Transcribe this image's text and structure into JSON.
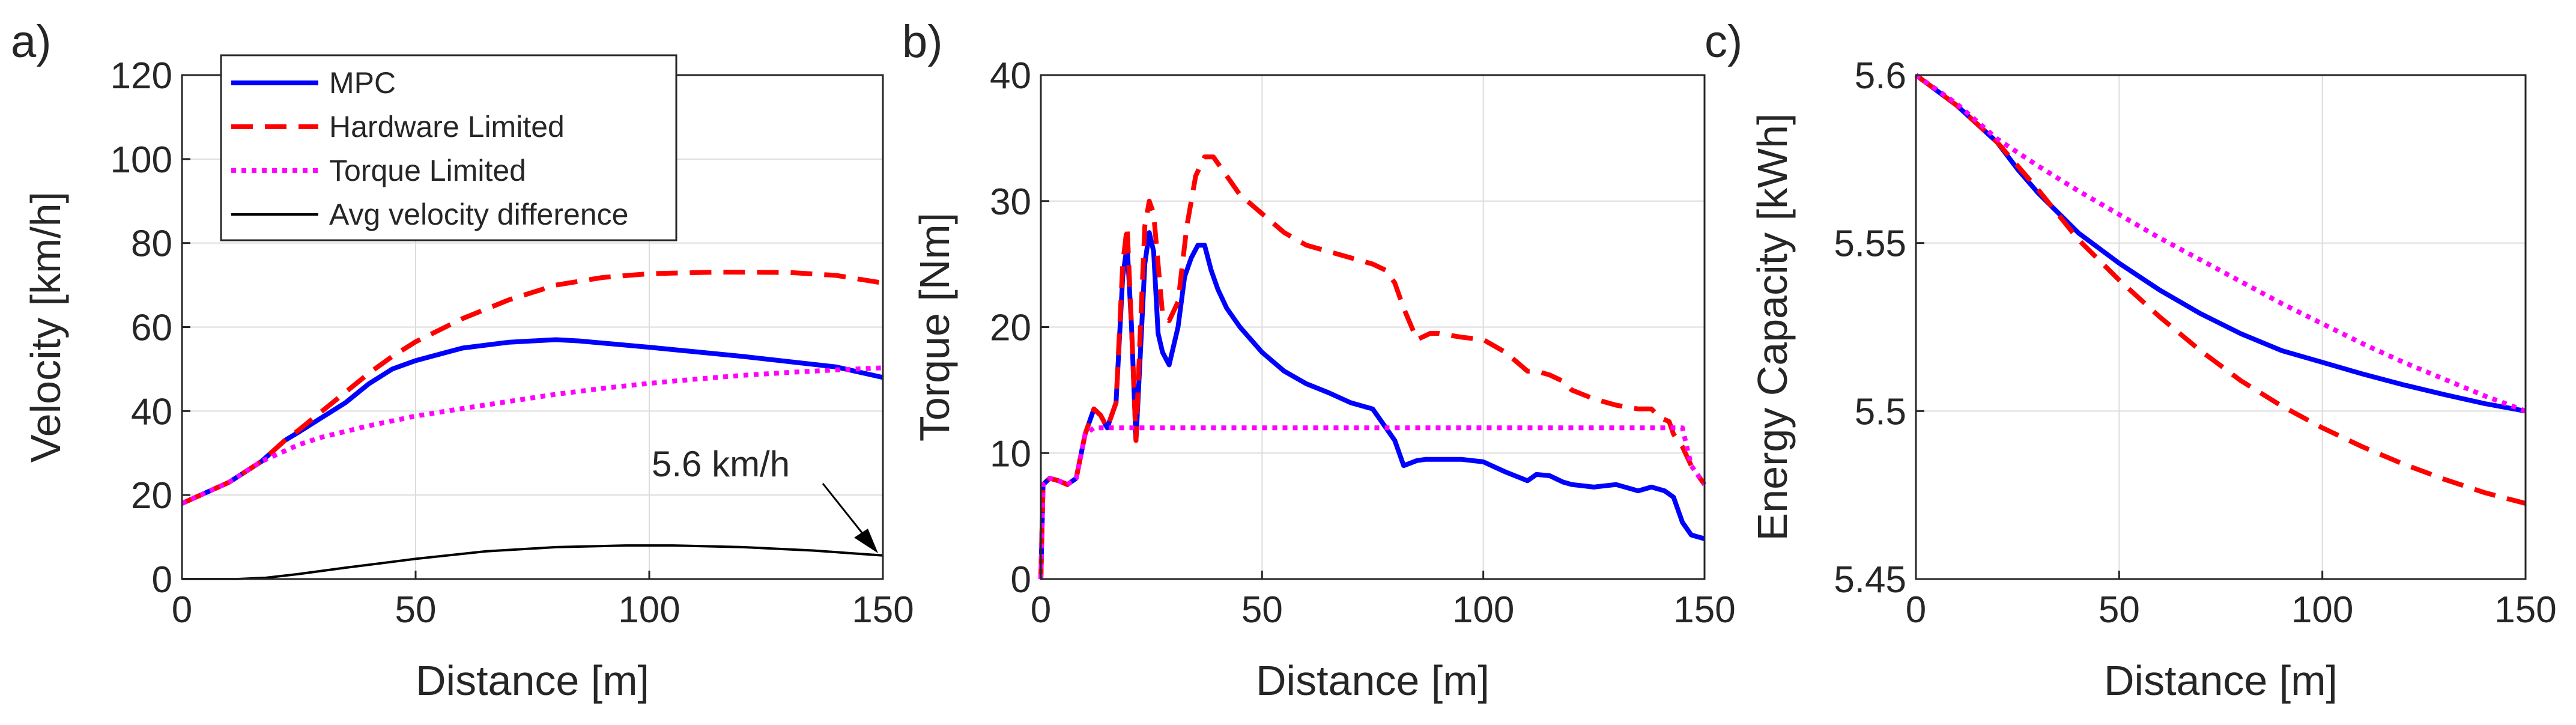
{
  "chart_data": [
    {
      "panel": "a)",
      "type": "line",
      "xlabel": "Distance [m]",
      "ylabel": "Velocity [km/h]",
      "xlim": [
        0,
        150
      ],
      "ylim": [
        0,
        120
      ],
      "xticks": [
        0,
        50,
        100,
        150
      ],
      "yticks": [
        0,
        20,
        40,
        60,
        80,
        100,
        120
      ],
      "grid": true,
      "legend_position": "top-left",
      "annotation": "5.6 km/h",
      "series": [
        {
          "name": "MPC",
          "color": "#0000ff",
          "style": "solid",
          "x": [
            0,
            10,
            17,
            22,
            25,
            30,
            35,
            40,
            45,
            50,
            60,
            70,
            80,
            85,
            100,
            120,
            140,
            150
          ],
          "values": [
            18,
            23,
            28,
            33,
            35,
            38.5,
            42,
            46.5,
            50,
            52,
            55,
            56.4,
            57,
            56.7,
            55.2,
            53,
            50.5,
            48
          ]
        },
        {
          "name": "Hardware Limited",
          "color": "#ff0000",
          "style": "dashed",
          "x": [
            0,
            10,
            17,
            22,
            25,
            30,
            35,
            40,
            45,
            50,
            60,
            70,
            80,
            90,
            100,
            115,
            130,
            140,
            150
          ],
          "values": [
            18,
            23,
            28,
            33,
            35.5,
            40,
            44.5,
            49,
            53,
            56.5,
            62,
            66.5,
            70,
            71.8,
            72.7,
            73.1,
            73,
            72.3,
            70.5
          ]
        },
        {
          "name": "Torque Limited",
          "color": "#ff00ff",
          "style": "dotted",
          "x": [
            0,
            10,
            17,
            25,
            30,
            40,
            50,
            60,
            70,
            80,
            90,
            100,
            110,
            120,
            130,
            140,
            150
          ],
          "values": [
            18,
            23,
            28,
            32,
            33.8,
            36.5,
            38.8,
            40.6,
            42.3,
            44,
            45.4,
            46.6,
            47.6,
            48.5,
            49.2,
            49.8,
            50.3
          ]
        },
        {
          "name": "Avg velocity difference",
          "color": "#000000",
          "style": "solid-thin",
          "x": [
            0,
            12,
            18,
            25,
            35,
            50,
            65,
            80,
            95,
            105,
            120,
            135,
            150
          ],
          "values": [
            0,
            0,
            0.3,
            1.2,
            2.7,
            4.8,
            6.6,
            7.6,
            8,
            8,
            7.6,
            6.8,
            5.6
          ]
        }
      ]
    },
    {
      "panel": "b)",
      "type": "line",
      "xlabel": "Distance [m]",
      "ylabel": "Torque [Nm]",
      "xlim": [
        0,
        150
      ],
      "ylim": [
        0,
        40
      ],
      "xticks": [
        0,
        50,
        100,
        150
      ],
      "yticks": [
        0,
        10,
        20,
        30,
        40
      ],
      "grid": true,
      "series": [
        {
          "name": "MPC",
          "color": "#0000ff",
          "style": "solid",
          "x": [
            0,
            0.5,
            2,
            4,
            6,
            8,
            10,
            12,
            13.5,
            15,
            17,
            18.5,
            19.5,
            20.5,
            21.5,
            22.5,
            23.5,
            24.5,
            25.5,
            26.5,
            27.5,
            29,
            31,
            32.5,
            34,
            35.5,
            37,
            38.5,
            40,
            42,
            45,
            50,
            55,
            60,
            65,
            70,
            75,
            80,
            82,
            85,
            87,
            90,
            95,
            100,
            105,
            110,
            112,
            115,
            118,
            120,
            125,
            130,
            135,
            138,
            141,
            143,
            145,
            147,
            150
          ],
          "values": [
            0,
            7.5,
            8,
            7.8,
            7.5,
            8,
            11.5,
            13.5,
            13,
            12,
            14,
            24,
            26.5,
            20,
            11,
            18,
            25,
            27.5,
            26,
            19.5,
            18,
            17,
            20,
            24,
            25.5,
            26.5,
            26.5,
            24.5,
            23,
            21.5,
            20,
            18,
            16.5,
            15.5,
            14.8,
            14,
            13.5,
            11,
            9,
            9.4,
            9.5,
            9.5,
            9.5,
            9.3,
            8.5,
            7.8,
            8.3,
            8.2,
            7.7,
            7.5,
            7.3,
            7.5,
            7,
            7.3,
            7,
            6.5,
            4.5,
            3.5,
            3.2
          ]
        },
        {
          "name": "Hardware Limited",
          "color": "#ff0000",
          "style": "dashed",
          "x": [
            0,
            0.5,
            2,
            4,
            6,
            8,
            10,
            12,
            13.5,
            15,
            17,
            18.5,
            19.5,
            20.5,
            21.5,
            22.5,
            23.5,
            24.5,
            25.5,
            26.5,
            27.5,
            29,
            31,
            33,
            35,
            37,
            39,
            42,
            45,
            50,
            55,
            60,
            65,
            70,
            75,
            78,
            80,
            82,
            85,
            88,
            90,
            95,
            100,
            105,
            110,
            112,
            115,
            118,
            120,
            125,
            130,
            135,
            138,
            140,
            142,
            143,
            145,
            147,
            150
          ],
          "values": [
            0,
            7.5,
            8,
            7.8,
            7.5,
            8,
            11.5,
            13.5,
            13,
            12,
            14,
            25,
            28,
            20,
            11,
            20,
            28,
            30,
            29,
            25,
            21,
            20.5,
            22,
            28,
            32,
            33.5,
            33.5,
            32,
            30.5,
            29,
            27.5,
            26.5,
            26,
            25.5,
            25,
            24.5,
            23.5,
            21.5,
            19,
            19.5,
            19.5,
            19.2,
            19,
            18,
            16.5,
            16.5,
            16.2,
            15.7,
            15,
            14.3,
            13.8,
            13.5,
            13.5,
            12.8,
            12.5,
            11.5,
            10.5,
            9,
            7.5
          ]
        },
        {
          "name": "Torque Limited",
          "color": "#ff00ff",
          "style": "dotted",
          "x": [
            0,
            0.5,
            2,
            4,
            6,
            8,
            10,
            12,
            15,
            145,
            147,
            150
          ],
          "values": [
            0,
            7.5,
            8,
            7.8,
            7.5,
            8,
            11.5,
            12,
            12,
            12,
            9,
            7.5
          ]
        }
      ]
    },
    {
      "panel": "c)",
      "type": "line",
      "xlabel": "Distance [m]",
      "ylabel": "Energy Capacity [kWh]",
      "xlim": [
        0,
        150
      ],
      "ylim": [
        5.45,
        5.6
      ],
      "xticks": [
        0,
        50,
        100,
        150
      ],
      "yticks": [
        5.45,
        5.5,
        5.55,
        5.6
      ],
      "ytick_labels": [
        "5.45",
        "5.5",
        "5.55",
        "5.6"
      ],
      "grid": true,
      "series": [
        {
          "name": "MPC",
          "color": "#0000ff",
          "style": "solid",
          "x": [
            0,
            10,
            20,
            25,
            30,
            40,
            50,
            60,
            70,
            80,
            90,
            100,
            110,
            120,
            130,
            140,
            150
          ],
          "values": [
            5.6,
            5.591,
            5.58,
            5.572,
            5.565,
            5.553,
            5.544,
            5.536,
            5.529,
            5.523,
            5.518,
            5.5145,
            5.511,
            5.5078,
            5.5049,
            5.5022,
            5.5
          ]
        },
        {
          "name": "Hardware Limited",
          "color": "#ff0000",
          "style": "dashed",
          "x": [
            0,
            10,
            20,
            25,
            30,
            40,
            50,
            60,
            70,
            80,
            90,
            100,
            110,
            120,
            130,
            140,
            150
          ],
          "values": [
            5.6,
            5.591,
            5.58,
            5.573,
            5.566,
            5.551,
            5.539,
            5.528,
            5.518,
            5.509,
            5.5015,
            5.495,
            5.4893,
            5.4842,
            5.4797,
            5.4757,
            5.4725
          ]
        },
        {
          "name": "Torque Limited",
          "color": "#ff00ff",
          "style": "dotted",
          "x": [
            0,
            10,
            20,
            30,
            40,
            50,
            60,
            70,
            80,
            90,
            100,
            110,
            120,
            130,
            140,
            150
          ],
          "values": [
            5.6,
            5.5915,
            5.581,
            5.573,
            5.5655,
            5.5585,
            5.5515,
            5.545,
            5.5385,
            5.532,
            5.526,
            5.52,
            5.5145,
            5.5095,
            5.5045,
            5.5
          ]
        }
      ]
    }
  ]
}
